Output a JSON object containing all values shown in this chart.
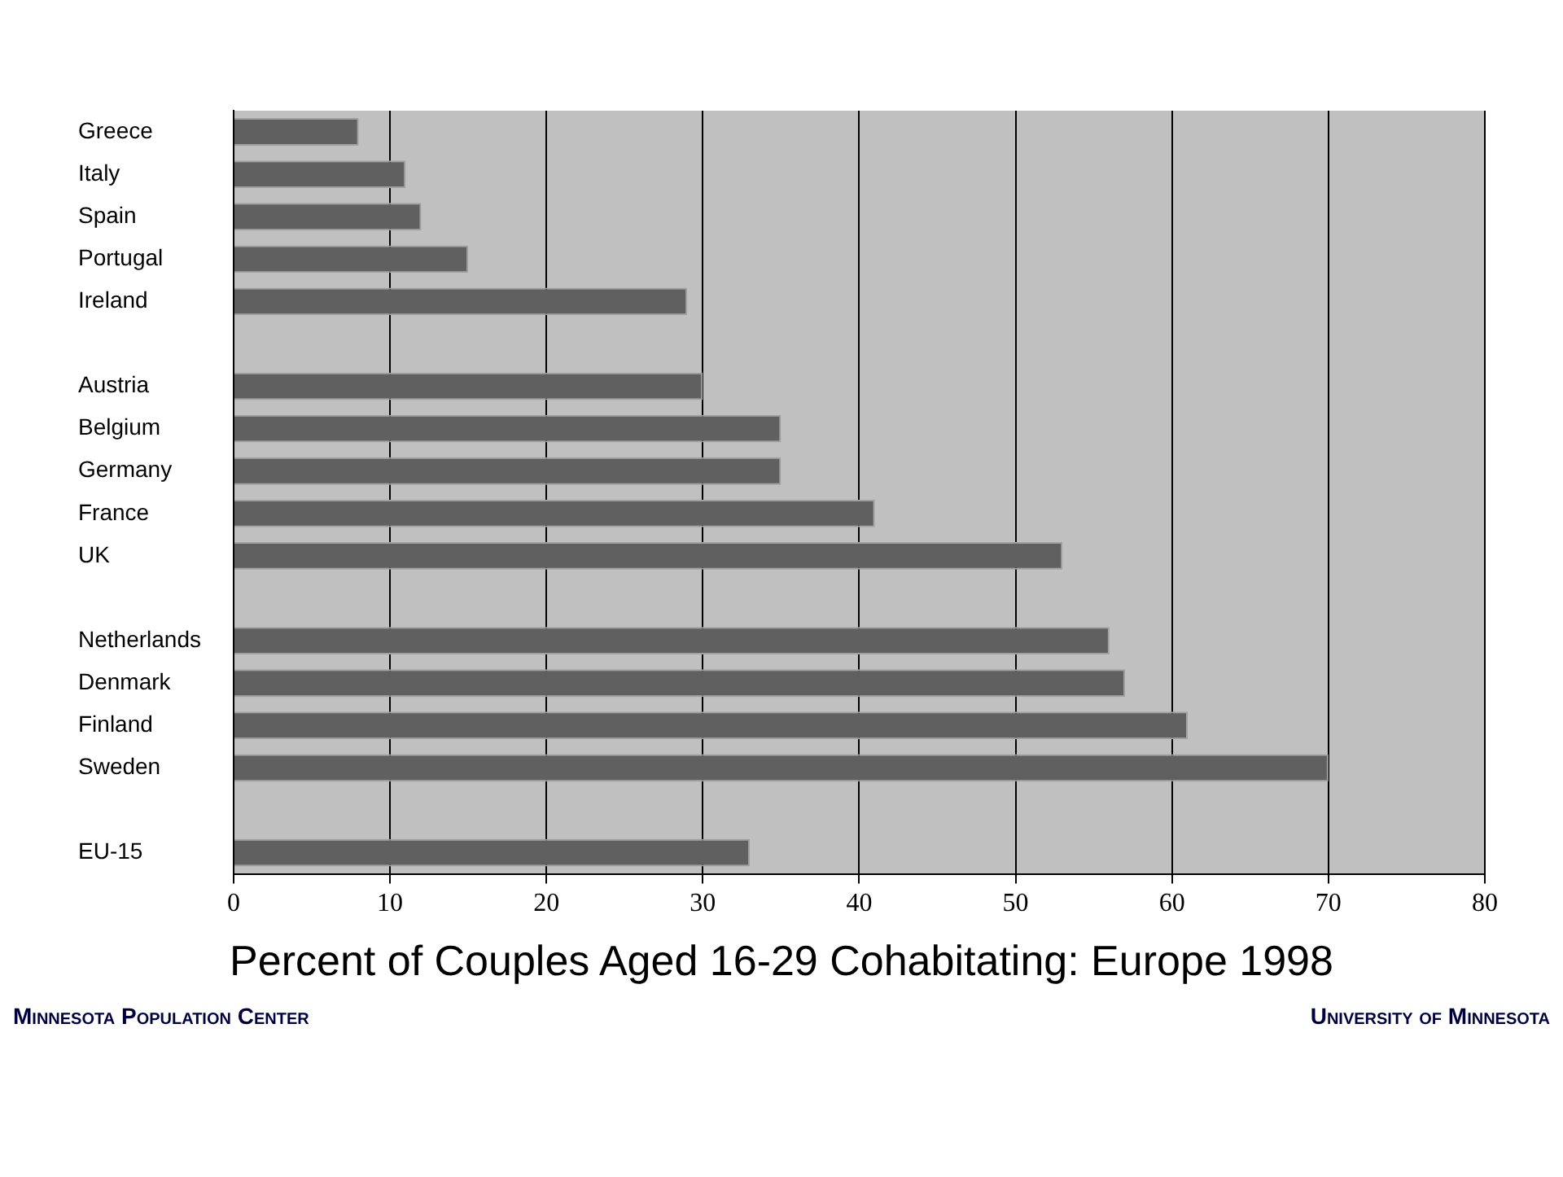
{
  "chart_data": {
    "type": "bar",
    "orientation": "horizontal",
    "title": "Percent of Couples Aged 16-29 Cohabitating: Europe 1998",
    "categories": [
      "Greece",
      "Italy",
      "Spain",
      "Portugal",
      "Ireland",
      null,
      "Austria",
      "Belgium",
      "Germany",
      "France",
      "UK",
      null,
      "Netherlands",
      "Denmark",
      "Finland",
      "Sweden",
      null,
      "EU-15"
    ],
    "values": [
      8,
      11,
      12,
      15,
      29,
      null,
      30,
      35,
      35,
      41,
      53,
      null,
      56,
      57,
      61,
      70,
      null,
      33
    ],
    "color": "#606060",
    "xlim": [
      0,
      80
    ],
    "xticks": [
      0,
      10,
      20,
      30,
      40,
      50,
      60,
      70,
      80
    ],
    "grid": "x",
    "legend": false,
    "annotations": [
      "Minnesota Population Center",
      "University of Minnesota"
    ]
  }
}
